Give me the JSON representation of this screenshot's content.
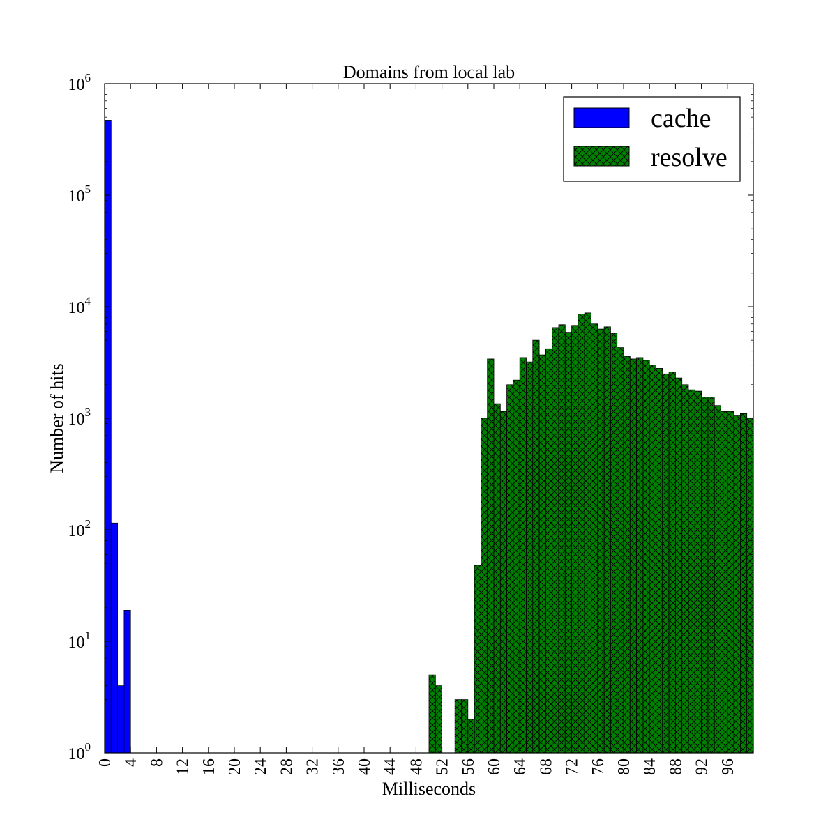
{
  "chart_data": {
    "type": "bar",
    "title": "Domains from local lab",
    "xlabel": "Milliseconds",
    "ylabel": "Number of hits",
    "y_scale": "log",
    "ylim": [
      1,
      1000000
    ],
    "xlim": [
      0,
      100
    ],
    "grid": false,
    "legend_position": "top-right",
    "x_ticks": [
      "0",
      "4",
      "8",
      "12",
      "16",
      "20",
      "24",
      "28",
      "32",
      "36",
      "40",
      "44",
      "48",
      "52",
      "56",
      "60",
      "64",
      "68",
      "72",
      "76",
      "80",
      "84",
      "88",
      "92",
      "96"
    ],
    "y_ticks": [
      {
        "base": "10",
        "exp": "0",
        "value": 1
      },
      {
        "base": "10",
        "exp": "1",
        "value": 10
      },
      {
        "base": "10",
        "exp": "2",
        "value": 100
      },
      {
        "base": "10",
        "exp": "3",
        "value": 1000
      },
      {
        "base": "10",
        "exp": "4",
        "value": 10000
      },
      {
        "base": "10",
        "exp": "5",
        "value": 100000
      },
      {
        "base": "10",
        "exp": "6",
        "value": 1000000
      }
    ],
    "series": [
      {
        "name": "cache",
        "color": "#0000ff",
        "hatch": "none",
        "x": [
          0,
          1,
          2,
          3
        ],
        "values": [
          470000,
          115,
          4,
          19
        ]
      },
      {
        "name": "resolve",
        "color": "#008000",
        "hatch": "cross",
        "x": [
          50,
          51,
          54,
          55,
          56,
          57,
          58,
          59,
          60,
          61,
          62,
          63,
          64,
          65,
          66,
          67,
          68,
          69,
          70,
          71,
          72,
          73,
          74,
          75,
          76,
          77,
          78,
          79,
          80,
          81,
          82,
          83,
          84,
          85,
          86,
          87,
          88,
          89,
          90,
          91,
          92,
          93,
          94,
          95,
          96,
          97,
          98,
          99
        ],
        "values": [
          5,
          4,
          3,
          3,
          2,
          48,
          1000,
          3400,
          1350,
          1150,
          2000,
          2200,
          3500,
          3200,
          5000,
          3700,
          4200,
          6500,
          6900,
          5900,
          6800,
          8600,
          8800,
          7000,
          6300,
          6600,
          5800,
          4300,
          3600,
          3400,
          3500,
          3300,
          3000,
          2800,
          2500,
          2600,
          2300,
          2000,
          1800,
          1750,
          1550,
          1550,
          1300,
          1150,
          1150,
          1050,
          1100,
          1000
        ]
      }
    ]
  }
}
